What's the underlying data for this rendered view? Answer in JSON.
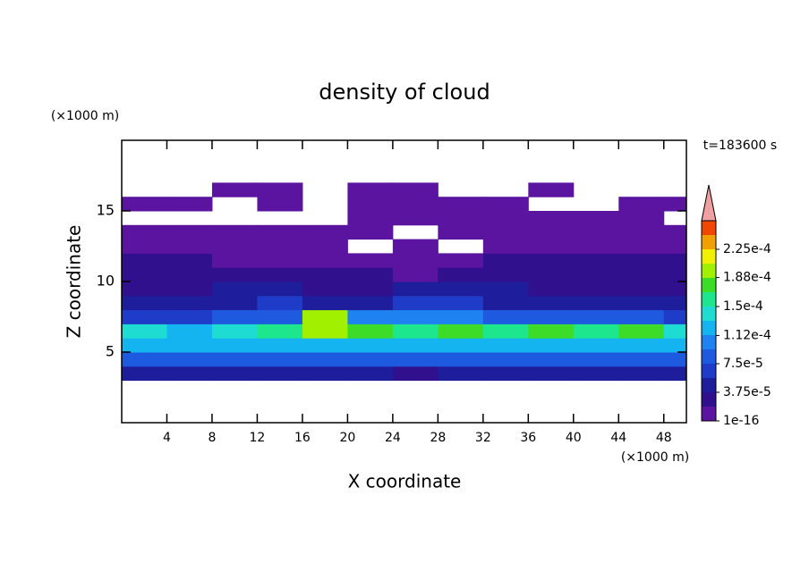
{
  "chart_data": {
    "type": "contour",
    "title": "density of cloud",
    "xlabel": "X coordinate",
    "ylabel": "Z coordinate",
    "xunit": "(×1000 m)",
    "yunit": "(×1000 m)",
    "annotation": "t=183600 s",
    "xlim": [
      0,
      50
    ],
    "ylim": [
      0,
      20
    ],
    "xticks": [
      4,
      8,
      12,
      16,
      20,
      24,
      28,
      32,
      36,
      40,
      44,
      48
    ],
    "yticks": [
      5,
      10,
      15
    ],
    "x": [
      2,
      6,
      10,
      14,
      18,
      22,
      26,
      30,
      34,
      38,
      42,
      46,
      50
    ],
    "z": [
      3.5,
      4.5,
      5.5,
      6.5,
      7.5,
      8.5,
      9.5,
      10.5,
      11.5,
      12.5,
      13.5,
      14.5,
      15.5,
      16.5
    ],
    "values": [
      [
        4e-05,
        4e-05,
        4e-05,
        4e-05,
        4e-05,
        4e-05,
        3e-05,
        4e-05,
        4e-05,
        4e-05,
        4e-05,
        4e-05,
        4e-05
      ],
      [
        8e-05,
        9e-05,
        8e-05,
        9e-05,
        9e-05,
        8e-05,
        8e-05,
        9e-05,
        9e-05,
        8e-05,
        9e-05,
        9e-05,
        8e-05
      ],
      [
        0.00013,
        0.00012,
        0.00013,
        0.00012,
        0.00013,
        0.00012,
        0.00013,
        0.00013,
        0.00012,
        0.00013,
        0.00013,
        0.00012,
        0.00012
      ],
      [
        0.00015,
        0.00013,
        0.00015,
        0.00016,
        0.0002,
        0.00017,
        0.00016,
        0.00017,
        0.00016,
        0.00018,
        0.00016,
        0.00018,
        0.00014
      ],
      [
        6e-05,
        7e-05,
        8e-05,
        9e-05,
        0.00019,
        0.0001,
        0.0001,
        0.0001,
        8e-05,
        9e-05,
        8e-05,
        8e-05,
        7e-05
      ],
      [
        4e-05,
        4e-05,
        5e-05,
        6e-05,
        5e-05,
        5e-05,
        6e-05,
        6e-05,
        5e-05,
        5e-05,
        5e-05,
        5e-05,
        4e-05
      ],
      [
        3e-05,
        3e-05,
        4e-05,
        4e-05,
        3e-05,
        3e-05,
        4e-05,
        4e-05,
        4e-05,
        3e-05,
        3e-05,
        3e-05,
        3e-05
      ],
      [
        3e-05,
        2.5e-05,
        2e-05,
        3e-05,
        2e-05,
        2e-05,
        1.5e-05,
        2.5e-05,
        3e-05,
        3e-05,
        2.5e-05,
        2e-05,
        3e-05
      ],
      [
        2e-05,
        2e-05,
        1.5e-05,
        1e-05,
        1e-05,
        5e-06,
        5e-06,
        1e-05,
        2e-05,
        2e-05,
        2e-05,
        2e-05,
        2e-05
      ],
      [
        1e-05,
        5e-06,
        5e-06,
        5e-06,
        5e-06,
        null,
        5e-06,
        null,
        5e-06,
        5e-06,
        5e-06,
        5e-06,
        5e-06
      ],
      [
        5e-06,
        5e-06,
        2e-06,
        2e-06,
        2e-06,
        2e-06,
        null,
        2e-06,
        2e-06,
        2e-06,
        5e-06,
        5e-06,
        5e-06
      ],
      [
        null,
        null,
        null,
        null,
        null,
        2e-06,
        2e-06,
        2e-06,
        2e-06,
        2e-06,
        2e-06,
        2e-06,
        null
      ],
      [
        1e-06,
        1e-06,
        null,
        1e-06,
        null,
        1e-06,
        1e-06,
        1e-06,
        1e-06,
        null,
        null,
        1e-06,
        1e-06
      ],
      [
        null,
        null,
        1e-06,
        1e-06,
        null,
        1e-06,
        1e-06,
        null,
        null,
        1e-06,
        null,
        null,
        null
      ]
    ],
    "zlim": [
      1e-16,
      0.0002625
    ],
    "colors": [
      "#5a14a0",
      "#30108c",
      "#1e1e9c",
      "#1e3cc8",
      "#1e5ae0",
      "#1e82f0",
      "#14b4f0",
      "#1edcd2",
      "#1ee68c",
      "#3cdc28",
      "#a0f000",
      "#f0f000",
      "#f0a000",
      "#f04600"
    ],
    "extend_color": "#f0a0a0",
    "cbticks": [
      {
        "value": 1e-16,
        "label": "1e-16"
      },
      {
        "value": 3.75e-05,
        "label": "3.75e-5"
      },
      {
        "value": 7.5e-05,
        "label": "7.5e-5"
      },
      {
        "value": 0.000112,
        "label": "1.12e-4"
      },
      {
        "value": 0.00015,
        "label": "1.5e-4"
      },
      {
        "value": 0.000188,
        "label": "1.88e-4"
      },
      {
        "value": 0.000225,
        "label": "2.25e-4"
      }
    ]
  }
}
